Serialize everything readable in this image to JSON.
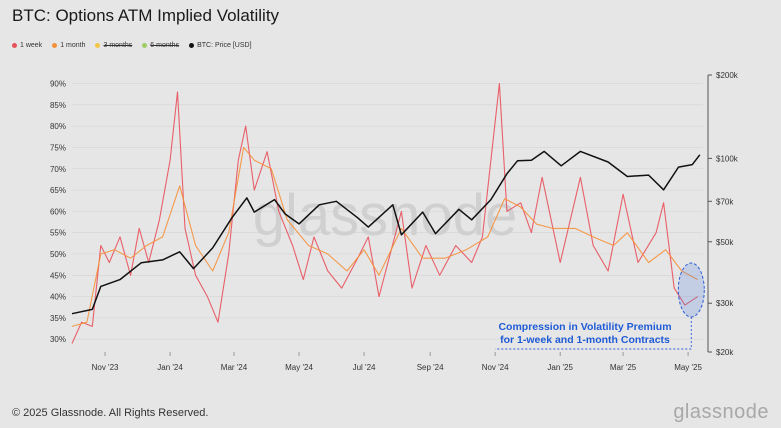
{
  "header": {
    "title": "BTC: Options ATM Implied Volatility"
  },
  "legend": [
    {
      "label": "1 week",
      "color": "#e8505b",
      "struck": false
    },
    {
      "label": "1 month",
      "color": "#f5913a",
      "struck": false
    },
    {
      "label": "3 months",
      "color": "#f3c64a",
      "struck": true
    },
    {
      "label": "6 months",
      "color": "#9ccc65",
      "struck": true
    },
    {
      "label": "BTC: Price [USD]",
      "color": "#111111",
      "struck": false
    }
  ],
  "footer": {
    "copyright": "© 2025 Glassnode. All Rights Reserved.",
    "brand": "glassnode"
  },
  "watermark": "glassnode",
  "chart_data": {
    "type": "line",
    "title": "BTC: Options ATM Implied Volatility",
    "left_axis": {
      "ylim": [
        27,
        92
      ],
      "ticks": [
        "30%",
        "35%",
        "40%",
        "45%",
        "50%",
        "55%",
        "60%",
        "65%",
        "70%",
        "75%",
        "80%",
        "85%",
        "90%"
      ],
      "tick_values": [
        30,
        35,
        40,
        45,
        50,
        55,
        60,
        65,
        70,
        75,
        80,
        85,
        90
      ]
    },
    "right_axis": {
      "scale": "log",
      "ylim": [
        20000,
        200000
      ],
      "ticks": [
        "$20k",
        "$30k",
        "$50k",
        "$70k",
        "$100k",
        "$200k"
      ],
      "tick_values": [
        20000,
        30000,
        50000,
        70000,
        100000,
        200000
      ]
    },
    "x_axis": {
      "range": [
        "2023-10-01",
        "2025-05-15"
      ],
      "ticks": [
        "Nov '23",
        "Jan '24",
        "Mar '24",
        "May '24",
        "Jul '24",
        "Sep '24",
        "Nov '24",
        "Jan '25",
        "Mar '25",
        "May '25"
      ],
      "tick_dates": [
        "2023-11-01",
        "2024-01-01",
        "2024-03-01",
        "2024-05-01",
        "2024-07-01",
        "2024-09-01",
        "2024-11-01",
        "2025-01-01",
        "2025-03-01",
        "2025-05-01"
      ]
    },
    "grid": true,
    "legend_placement": "top-left",
    "series": [
      {
        "name": "1 week",
        "color": "#e8505b",
        "axis": "left",
        "points": [
          [
            "2023-10-01",
            29
          ],
          [
            "2023-10-10",
            34
          ],
          [
            "2023-10-20",
            33
          ],
          [
            "2023-10-28",
            52
          ],
          [
            "2023-11-05",
            48
          ],
          [
            "2023-11-15",
            54
          ],
          [
            "2023-11-25",
            45
          ],
          [
            "2023-12-03",
            56
          ],
          [
            "2023-12-12",
            48
          ],
          [
            "2023-12-22",
            58
          ],
          [
            "2024-01-01",
            72
          ],
          [
            "2024-01-08",
            88
          ],
          [
            "2024-01-15",
            56
          ],
          [
            "2024-01-25",
            45
          ],
          [
            "2024-02-05",
            40
          ],
          [
            "2024-02-15",
            34
          ],
          [
            "2024-02-25",
            50
          ],
          [
            "2024-03-05",
            72
          ],
          [
            "2024-03-12",
            80
          ],
          [
            "2024-03-20",
            65
          ],
          [
            "2024-04-01",
            74
          ],
          [
            "2024-04-12",
            60
          ],
          [
            "2024-04-25",
            52
          ],
          [
            "2024-05-05",
            44
          ],
          [
            "2024-05-15",
            54
          ],
          [
            "2024-05-28",
            46
          ],
          [
            "2024-06-10",
            42
          ],
          [
            "2024-06-25",
            49
          ],
          [
            "2024-07-05",
            54
          ],
          [
            "2024-07-15",
            40
          ],
          [
            "2024-08-05",
            60
          ],
          [
            "2024-08-15",
            42
          ],
          [
            "2024-08-28",
            52
          ],
          [
            "2024-09-10",
            45
          ],
          [
            "2024-09-25",
            52
          ],
          [
            "2024-10-10",
            48
          ],
          [
            "2024-10-20",
            54
          ],
          [
            "2024-11-05",
            90
          ],
          [
            "2024-11-12",
            60
          ],
          [
            "2024-11-25",
            62
          ],
          [
            "2024-12-05",
            55
          ],
          [
            "2024-12-15",
            68
          ],
          [
            "2025-01-01",
            48
          ],
          [
            "2025-01-20",
            68
          ],
          [
            "2025-02-01",
            52
          ],
          [
            "2025-02-15",
            46
          ],
          [
            "2025-03-01",
            64
          ],
          [
            "2025-03-15",
            48
          ],
          [
            "2025-04-01",
            55
          ],
          [
            "2025-04-08",
            62
          ],
          [
            "2025-04-18",
            42
          ],
          [
            "2025-04-28",
            38
          ],
          [
            "2025-05-10",
            40
          ]
        ]
      },
      {
        "name": "1 month",
        "color": "#f5913a",
        "axis": "left",
        "points": [
          [
            "2023-10-01",
            33
          ],
          [
            "2023-10-15",
            34
          ],
          [
            "2023-10-28",
            50
          ],
          [
            "2023-11-10",
            51
          ],
          [
            "2023-11-25",
            49
          ],
          [
            "2023-12-10",
            52
          ],
          [
            "2023-12-25",
            54
          ],
          [
            "2024-01-10",
            66
          ],
          [
            "2024-01-25",
            52
          ],
          [
            "2024-02-10",
            46
          ],
          [
            "2024-02-25",
            55
          ],
          [
            "2024-03-10",
            75
          ],
          [
            "2024-03-20",
            72
          ],
          [
            "2024-04-05",
            70
          ],
          [
            "2024-04-20",
            58
          ],
          [
            "2024-05-10",
            52
          ],
          [
            "2024-05-28",
            50
          ],
          [
            "2024-06-15",
            46
          ],
          [
            "2024-07-01",
            51
          ],
          [
            "2024-07-15",
            45
          ],
          [
            "2024-08-05",
            56
          ],
          [
            "2024-08-25",
            49
          ],
          [
            "2024-09-15",
            49
          ],
          [
            "2024-10-05",
            51
          ],
          [
            "2024-10-25",
            54
          ],
          [
            "2024-11-10",
            63
          ],
          [
            "2024-11-25",
            61
          ],
          [
            "2024-12-10",
            57
          ],
          [
            "2024-12-25",
            56
          ],
          [
            "2025-01-15",
            56
          ],
          [
            "2025-02-01",
            54
          ],
          [
            "2025-02-20",
            52
          ],
          [
            "2025-03-05",
            55
          ],
          [
            "2025-03-25",
            48
          ],
          [
            "2025-04-10",
            51
          ],
          [
            "2025-04-25",
            46
          ],
          [
            "2025-05-10",
            44
          ]
        ]
      },
      {
        "name": "BTC: Price [USD]",
        "color": "#111111",
        "axis": "right",
        "points": [
          [
            "2023-10-01",
            27500
          ],
          [
            "2023-10-20",
            28500
          ],
          [
            "2023-10-28",
            34500
          ],
          [
            "2023-11-15",
            36500
          ],
          [
            "2023-12-05",
            42000
          ],
          [
            "2023-12-25",
            43000
          ],
          [
            "2024-01-10",
            46000
          ],
          [
            "2024-01-23",
            40000
          ],
          [
            "2024-02-10",
            47500
          ],
          [
            "2024-02-28",
            61000
          ],
          [
            "2024-03-13",
            72000
          ],
          [
            "2024-03-20",
            64000
          ],
          [
            "2024-04-08",
            71000
          ],
          [
            "2024-04-18",
            63000
          ],
          [
            "2024-05-01",
            58000
          ],
          [
            "2024-05-20",
            68000
          ],
          [
            "2024-06-05",
            70000
          ],
          [
            "2024-06-25",
            61000
          ],
          [
            "2024-07-05",
            56500
          ],
          [
            "2024-07-28",
            68000
          ],
          [
            "2024-08-05",
            53000
          ],
          [
            "2024-08-25",
            64000
          ],
          [
            "2024-09-06",
            53500
          ],
          [
            "2024-09-28",
            65500
          ],
          [
            "2024-10-10",
            60000
          ],
          [
            "2024-10-28",
            71000
          ],
          [
            "2024-11-12",
            88000
          ],
          [
            "2024-11-22",
            98000
          ],
          [
            "2024-12-05",
            98500
          ],
          [
            "2024-12-17",
            106000
          ],
          [
            "2025-01-02",
            94000
          ],
          [
            "2025-01-20",
            106000
          ],
          [
            "2025-02-15",
            97000
          ],
          [
            "2025-03-05",
            86000
          ],
          [
            "2025-03-25",
            87000
          ],
          [
            "2025-04-08",
            77000
          ],
          [
            "2025-04-22",
            93000
          ],
          [
            "2025-05-05",
            95000
          ],
          [
            "2025-05-12",
            103000
          ]
        ]
      }
    ],
    "annotation": {
      "text_lines": [
        "Compression in Volatility Premium",
        "for 1-week and 1-month Contracts"
      ]
    }
  }
}
